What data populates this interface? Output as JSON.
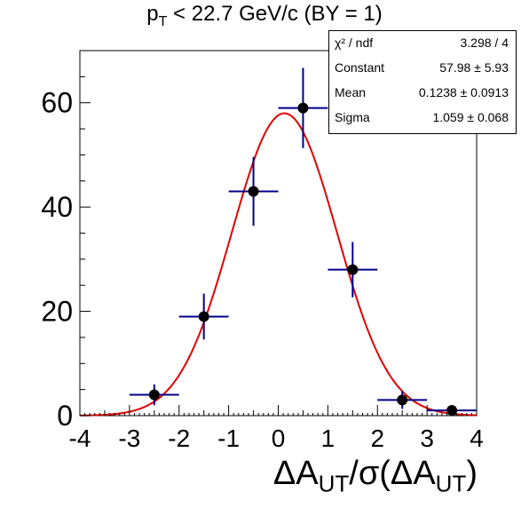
{
  "title": {
    "main": "p",
    "sub": "T",
    "rest": " < 22.7 GeV/c (BY = 1)"
  },
  "stats": [
    {
      "key": "χ² / ndf",
      "value": "3.298 / 4"
    },
    {
      "key": "Constant",
      "value": "57.98 ± 5.93"
    },
    {
      "key": "Mean",
      "value": "0.1238 ± 0.0913"
    },
    {
      "key": "Sigma",
      "value": "1.059 ± 0.068"
    }
  ],
  "xtitle": {
    "p1": "ΔA",
    "s1": "UT",
    "p2": "/σ(ΔA",
    "s2": "UT",
    "p3": ")"
  },
  "colors": {
    "points": "#000000",
    "errors": "#00008b",
    "fit": "#e00000",
    "frame": "#000000"
  },
  "chart_data": {
    "type": "scatter",
    "xlim": [
      -4,
      4
    ],
    "ylim": [
      0,
      70
    ],
    "xticks": [
      -4,
      -3,
      -2,
      -1,
      0,
      1,
      2,
      3,
      4
    ],
    "yticks": [
      0,
      20,
      40,
      60
    ],
    "grid": false,
    "series": [
      {
        "x": [
          -2.5,
          -1.5,
          -0.5,
          0.5,
          1.5,
          2.5,
          3.5
        ],
        "y": [
          4,
          19,
          43,
          59,
          28,
          3,
          1
        ],
        "xerr": [
          0.5,
          0.5,
          0.5,
          0.5,
          0.5,
          0.5,
          0.5
        ],
        "yerr": [
          2.0,
          4.4,
          6.6,
          7.7,
          5.3,
          1.7,
          1.0
        ]
      }
    ],
    "fit": {
      "function": "gaus",
      "constant": 57.98,
      "mean": 0.1238,
      "sigma": 1.059
    }
  }
}
